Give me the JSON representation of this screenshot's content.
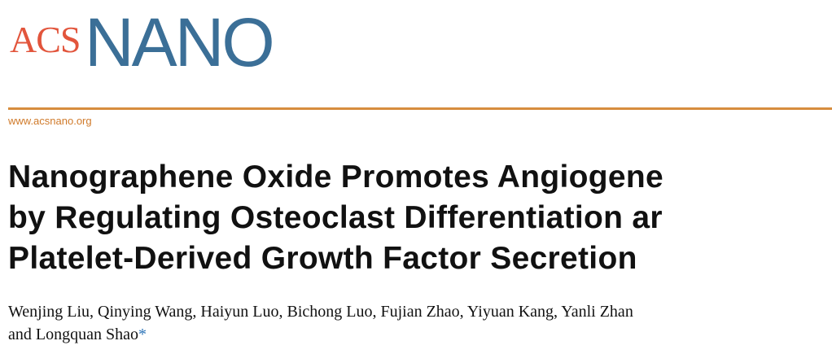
{
  "header": {
    "logo_acs": "ACS",
    "logo_nano": "NANO",
    "url": "www.acsnano.org"
  },
  "title": {
    "lines": [
      "Nanographene Oxide Promotes Angiogene",
      "by Regulating Osteoclast Differentiation ar",
      "Platelet-Derived Growth Factor Secretion"
    ]
  },
  "authors": {
    "lines": [
      "Wenjing Liu, Qinying Wang, Haiyun Luo, Bichong Luo, Fujian Zhao, Yiyuan Kang, Yanli Zhan",
      "and Longquan Shao"
    ],
    "marker": "*"
  }
}
